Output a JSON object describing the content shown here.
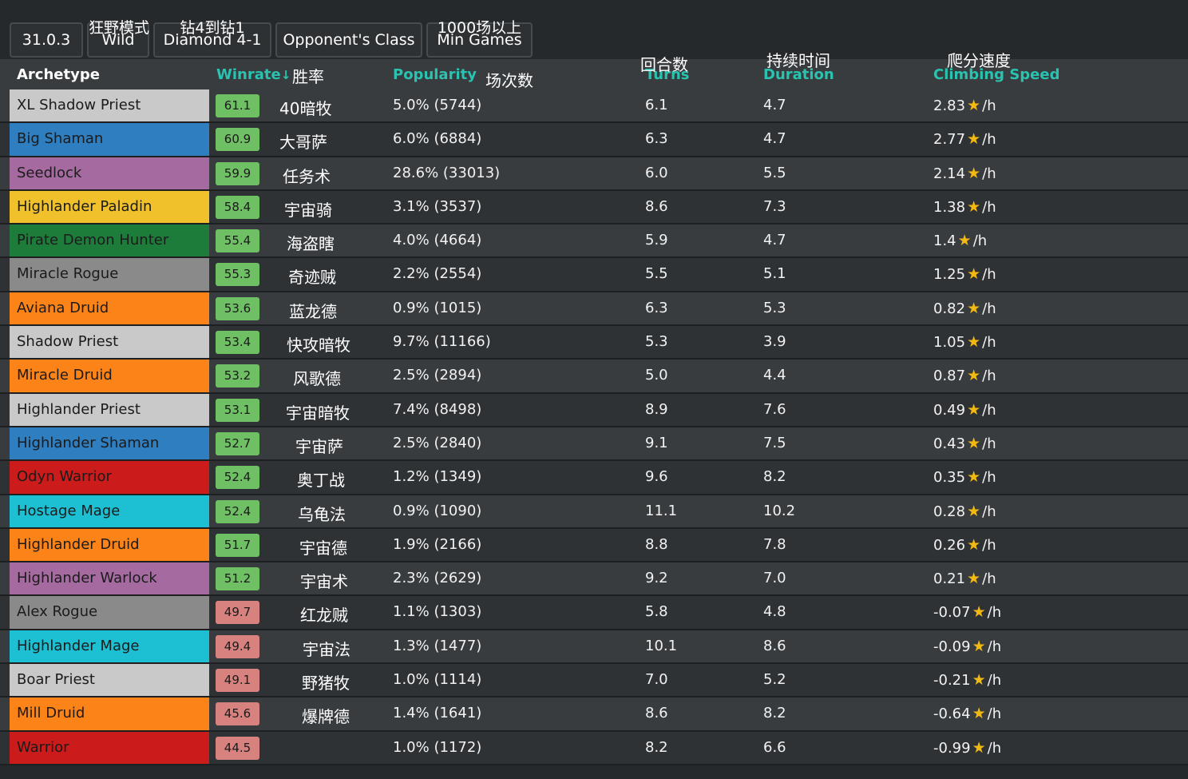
{
  "filters": [
    {
      "top": "",
      "value": "31.0.3"
    },
    {
      "top": "狂野模式",
      "value": "Wild"
    },
    {
      "top": "钻4到钻1",
      "value": "Diamond 4-1"
    },
    {
      "top": "",
      "value": "Opponent's Class"
    },
    {
      "top": "1000场以上",
      "value": "Min Games"
    }
  ],
  "headers": {
    "archetype": "Archetype",
    "winrate": "Winrate",
    "winrate_arrow": "↓",
    "winrate_cn": "胜率",
    "popularity": "Popularity",
    "popularity_cn": "场次数",
    "turns": "Turns",
    "turns_cn": "回合数",
    "duration": "Duration",
    "duration_cn": "持续时间",
    "climbing": "Climbing Speed",
    "climbing_cn": "爬分速度"
  },
  "colors": {
    "accent": "#29c3b0",
    "winrate_good": "#6fbf64",
    "winrate_bad": "#d7827f",
    "star": "#f3b913"
  },
  "rows": [
    {
      "archetype": "XL Shadow Priest",
      "color": "#c9c9c9",
      "winrate": "61.1",
      "cn": "40暗牧",
      "popularity": "5.0% (5744)",
      "turns": "6.1",
      "duration": "4.7",
      "climb": "2.83",
      "unit": "/h"
    },
    {
      "archetype": "Big Shaman",
      "color": "#2f7ebf",
      "winrate": "60.9",
      "cn": "大哥萨",
      "popularity": "6.0% (6884)",
      "turns": "6.3",
      "duration": "4.7",
      "climb": "2.77",
      "unit": "/h"
    },
    {
      "archetype": "Seedlock",
      "color": "#a56aa0",
      "winrate": "59.9",
      "cn": "任务术",
      "popularity": "28.6% (33013)",
      "turns": "6.0",
      "duration": "5.5",
      "climb": "2.14",
      "unit": "/h"
    },
    {
      "archetype": "Highlander Paladin",
      "color": "#f0c12a",
      "winrate": "58.4",
      "cn": "宇宙骑",
      "popularity": "3.1% (3537)",
      "turns": "8.6",
      "duration": "7.3",
      "climb": "1.38",
      "unit": "/h"
    },
    {
      "archetype": "Pirate Demon Hunter",
      "color": "#1e7c3b",
      "winrate": "55.4",
      "cn": "海盗瞎",
      "popularity": "4.0% (4664)",
      "turns": "5.9",
      "duration": "4.7",
      "climb": "1.4",
      "unit": "/h"
    },
    {
      "archetype": "Miracle Rogue",
      "color": "#8a8a8a",
      "winrate": "55.3",
      "cn": "奇迹贼",
      "popularity": "2.2% (2554)",
      "turns": "5.5",
      "duration": "5.1",
      "climb": "1.25",
      "unit": "/h"
    },
    {
      "archetype": "Aviana Druid",
      "color": "#fb8317",
      "winrate": "53.6",
      "cn": "蓝龙德",
      "popularity": "0.9% (1015)",
      "turns": "6.3",
      "duration": "5.3",
      "climb": "0.82",
      "unit": "/h"
    },
    {
      "archetype": "Shadow Priest",
      "color": "#c9c9c9",
      "winrate": "53.4",
      "cn": "快攻暗牧",
      "popularity": "9.7% (11166)",
      "turns": "5.3",
      "duration": "3.9",
      "climb": "1.05",
      "unit": "/h"
    },
    {
      "archetype": "Miracle Druid",
      "color": "#fb8317",
      "winrate": "53.2",
      "cn": "风歌德",
      "popularity": "2.5% (2894)",
      "turns": "5.0",
      "duration": "4.4",
      "climb": "0.87",
      "unit": "/h"
    },
    {
      "archetype": "Highlander Priest",
      "color": "#c9c9c9",
      "winrate": "53.1",
      "cn": "宇宙暗牧",
      "popularity": "7.4% (8498)",
      "turns": "8.9",
      "duration": "7.6",
      "climb": "0.49",
      "unit": "/h"
    },
    {
      "archetype": "Highlander Shaman",
      "color": "#2f7ebf",
      "winrate": "52.7",
      "cn": "宇宙萨",
      "popularity": "2.5% (2840)",
      "turns": "9.1",
      "duration": "7.5",
      "climb": "0.43",
      "unit": "/h"
    },
    {
      "archetype": "Odyn Warrior",
      "color": "#cb1b1b",
      "winrate": "52.4",
      "cn": "奥丁战",
      "popularity": "1.2% (1349)",
      "turns": "9.6",
      "duration": "8.2",
      "climb": "0.35",
      "unit": "/h"
    },
    {
      "archetype": "Hostage Mage",
      "color": "#1dbfd3",
      "winrate": "52.4",
      "cn": "乌龟法",
      "popularity": "0.9% (1090)",
      "turns": "11.1",
      "duration": "10.2",
      "climb": "0.28",
      "unit": "/h"
    },
    {
      "archetype": "Highlander Druid",
      "color": "#fb8317",
      "winrate": "51.7",
      "cn": "宇宙德",
      "popularity": "1.9% (2166)",
      "turns": "8.8",
      "duration": "7.8",
      "climb": "0.26",
      "unit": "/h"
    },
    {
      "archetype": "Highlander Warlock",
      "color": "#a56aa0",
      "winrate": "51.2",
      "cn": "宇宙术",
      "popularity": "2.3% (2629)",
      "turns": "9.2",
      "duration": "7.0",
      "climb": "0.21",
      "unit": "/h"
    },
    {
      "archetype": "Alex Rogue",
      "color": "#8a8a8a",
      "winrate": "49.7",
      "cn": "红龙贼",
      "popularity": "1.1% (1303)",
      "turns": "5.8",
      "duration": "4.8",
      "climb": "-0.07",
      "unit": "/h"
    },
    {
      "archetype": "Highlander Mage",
      "color": "#1dbfd3",
      "winrate": "49.4",
      "cn": "宇宙法",
      "popularity": "1.3% (1477)",
      "turns": "10.1",
      "duration": "8.6",
      "climb": "-0.09",
      "unit": "/h"
    },
    {
      "archetype": "Boar Priest",
      "color": "#c9c9c9",
      "winrate": "49.1",
      "cn": "野猪牧",
      "popularity": "1.0% (1114)",
      "turns": "7.0",
      "duration": "5.2",
      "climb": "-0.21",
      "unit": "/h"
    },
    {
      "archetype": "Mill Druid",
      "color": "#fb8317",
      "winrate": "45.6",
      "cn": "爆牌德",
      "popularity": "1.4% (1641)",
      "turns": "8.6",
      "duration": "8.2",
      "climb": "-0.64",
      "unit": "/h"
    },
    {
      "archetype": "Warrior",
      "color": "#cb1b1b",
      "winrate": "44.5",
      "cn": "",
      "popularity": "1.0% (1172)",
      "turns": "8.2",
      "duration": "6.6",
      "climb": "-0.99",
      "unit": "/h"
    }
  ]
}
